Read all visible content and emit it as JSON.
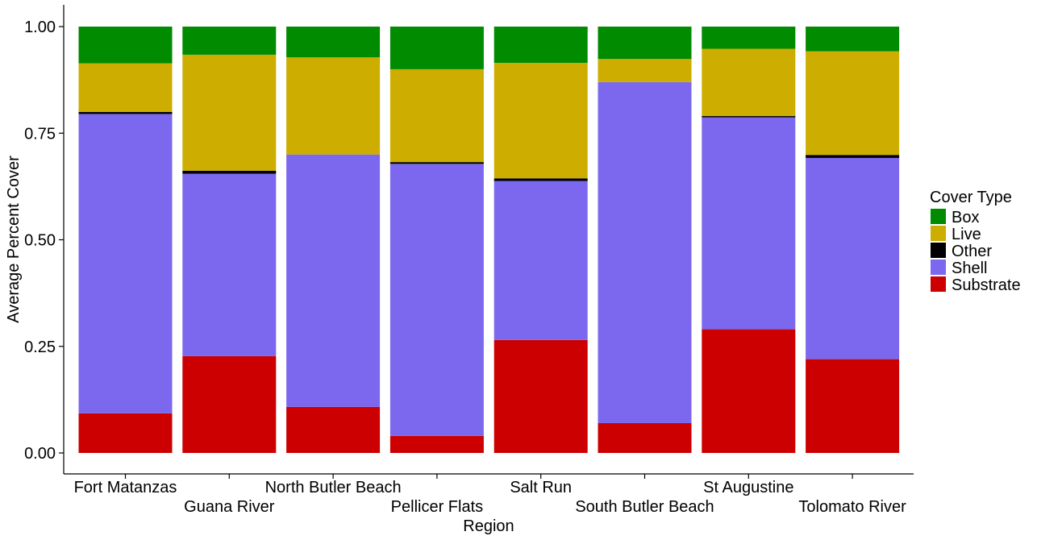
{
  "chart_data": {
    "type": "bar",
    "stacked": true,
    "xlabel": "Region",
    "ylabel": "Average Percent Cover",
    "ylim": [
      0,
      1
    ],
    "yticks": [
      "0.00",
      "0.25",
      "0.50",
      "0.75",
      "1.00"
    ],
    "grid": false,
    "legend_position": "right",
    "legend_title": "Cover Type",
    "categories": [
      "Fort Matanzas",
      "Guana River",
      "North Butler Beach",
      "Pellicer Flats",
      "Salt Run",
      "South Butler Beach",
      "St Augustine",
      "Tolomato River"
    ],
    "series": [
      {
        "name": "Substrate",
        "color": "#CC0000",
        "values": [
          0.093,
          0.227,
          0.108,
          0.04,
          0.265,
          0.07,
          0.29,
          0.22
        ]
      },
      {
        "name": "Shell",
        "color": "#7B68EE",
        "values": [
          0.702,
          0.428,
          0.592,
          0.638,
          0.373,
          0.8,
          0.497,
          0.472
        ]
      },
      {
        "name": "Other",
        "color": "#000000",
        "values": [
          0.005,
          0.007,
          0.0,
          0.004,
          0.006,
          0.0,
          0.003,
          0.007
        ]
      },
      {
        "name": "Live",
        "color": "#CCAD00",
        "values": [
          0.114,
          0.272,
          0.228,
          0.218,
          0.271,
          0.054,
          0.158,
          0.243
        ]
      },
      {
        "name": "Box",
        "color": "#008B00",
        "values": [
          0.086,
          0.066,
          0.072,
          0.1,
          0.085,
          0.076,
          0.052,
          0.058
        ]
      }
    ],
    "legend_order": [
      "Box",
      "Live",
      "Other",
      "Shell",
      "Substrate"
    ]
  }
}
